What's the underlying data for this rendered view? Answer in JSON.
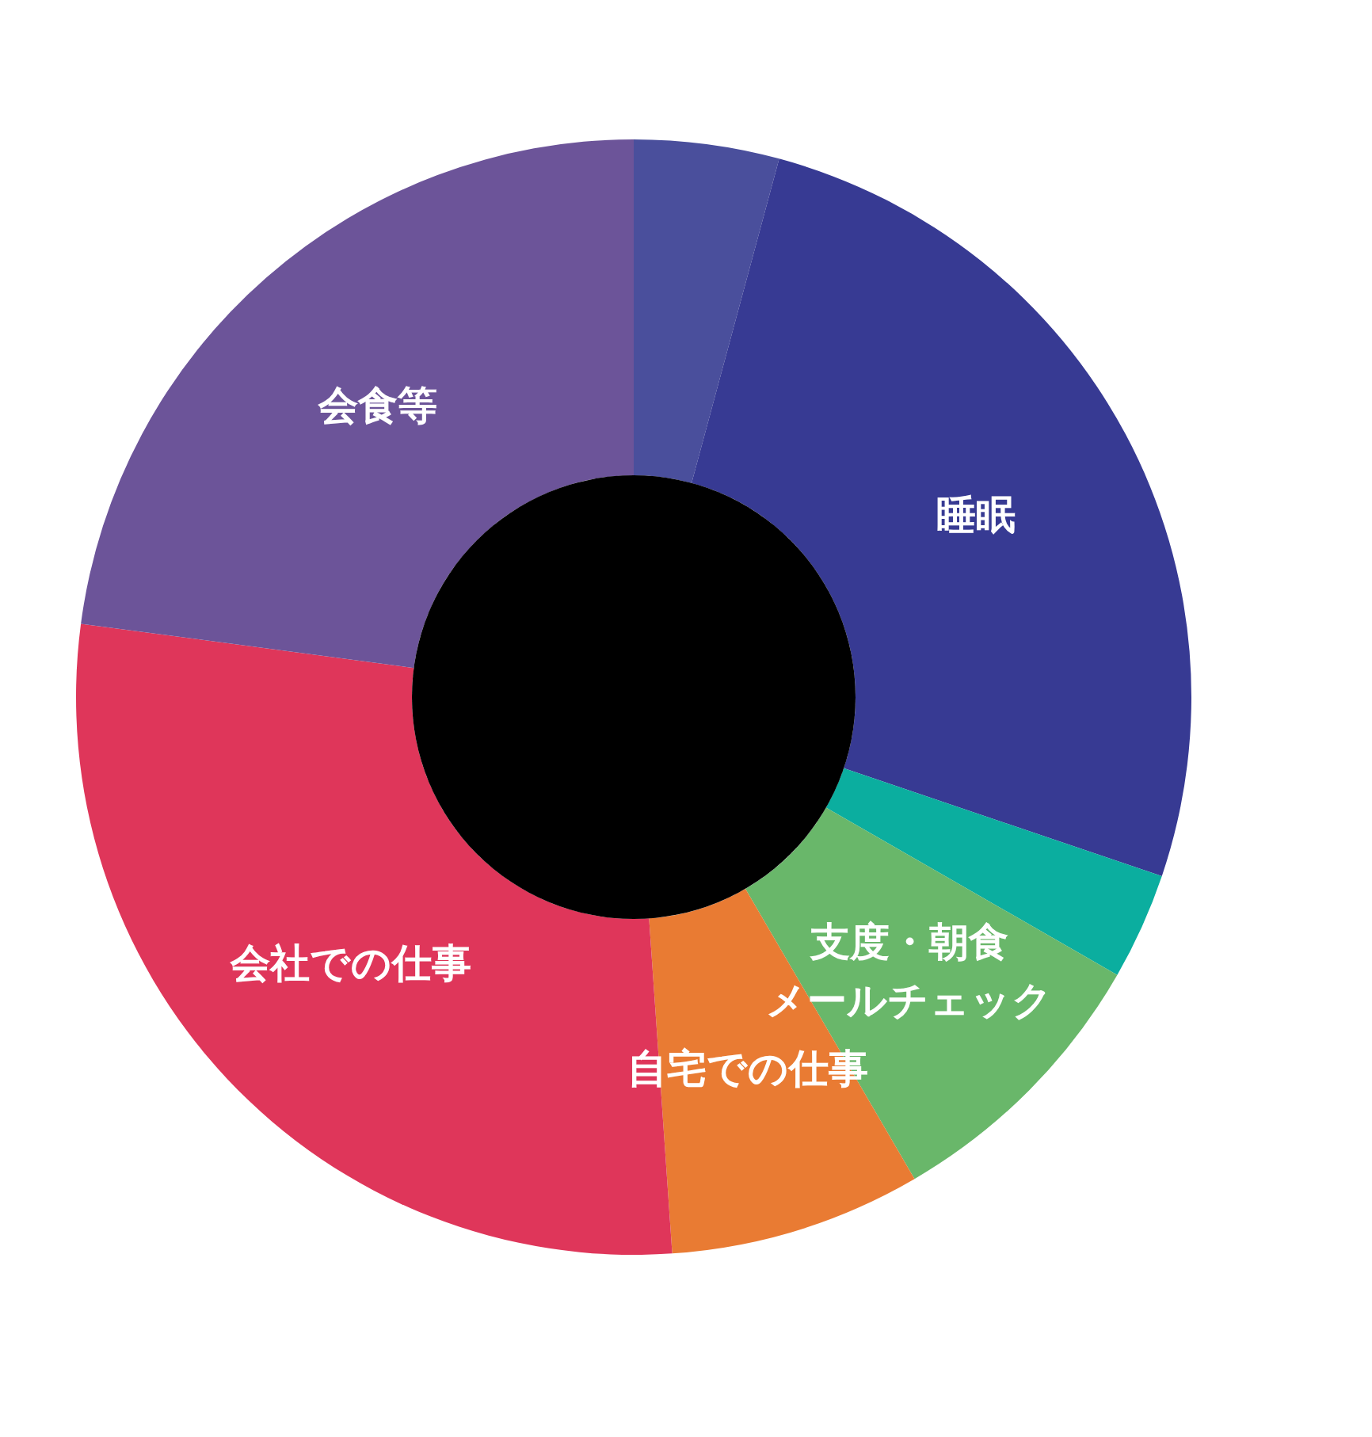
{
  "chart_data": {
    "type": "donut",
    "categories": [
      null,
      "睡眠",
      null,
      "支度・朝食メールチェック",
      "自宅での仕事",
      "会社での仕事",
      "会食等"
    ],
    "values": [
      4.2,
      26.0,
      3.1,
      8.3,
      7.3,
      28.2,
      22.9
    ],
    "colors": [
      "#4a4f9c",
      "#373a93",
      "#0bae9f",
      "#69b76a",
      "#e97b33",
      "#df365a",
      "#6c5499"
    ]
  }
}
